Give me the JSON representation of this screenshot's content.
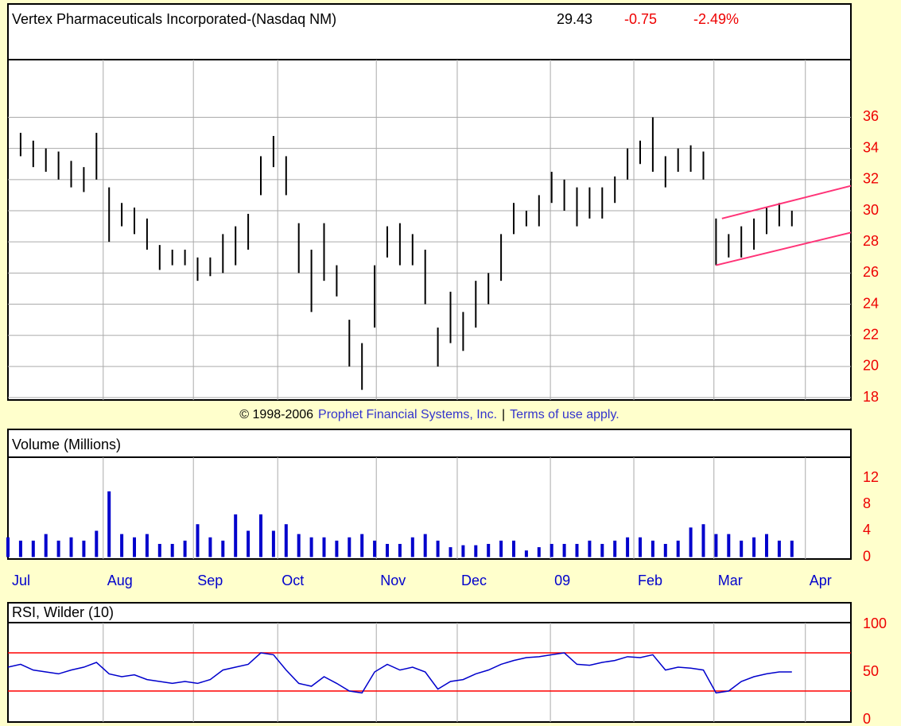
{
  "chart_data": [
    {
      "type": "range",
      "title": "Vertex Pharmaceuticals Incorporated-(Nasdaq NM)",
      "last": "29.43",
      "change": "-0.75",
      "change_pct": "-2.49%",
      "color": "#000000",
      "grid": true,
      "x": [
        0,
        3,
        6,
        9,
        12,
        15,
        18,
        21,
        24,
        27,
        30,
        33,
        36,
        39,
        42,
        45,
        48,
        51,
        54,
        57,
        60,
        63,
        66,
        69,
        72,
        75,
        78,
        81,
        84,
        87,
        90,
        93,
        96,
        99,
        102,
        105,
        108,
        111,
        114,
        117,
        120,
        123,
        126,
        129,
        132,
        135,
        138,
        141,
        144,
        147,
        150,
        153,
        156,
        159,
        162,
        165,
        168,
        171,
        174,
        177,
        180,
        183,
        186
      ],
      "high": [
        34.8,
        35,
        34.5,
        34,
        33.8,
        33.2,
        32.8,
        35,
        31.5,
        30.5,
        30.2,
        29.5,
        27.8,
        27.5,
        27.5,
        27,
        27,
        28.5,
        29,
        29.8,
        33.5,
        34.8,
        33.5,
        29.2,
        27.5,
        29.2,
        26.5,
        23,
        21.5,
        26.5,
        29,
        29.2,
        28.5,
        27.5,
        22.5,
        24.8,
        23.5,
        25.5,
        26,
        28.5,
        30.5,
        30,
        31,
        32.5,
        32,
        31.5,
        31.5,
        31.5,
        32.2,
        34,
        34.5,
        36,
        33.5,
        34,
        34.2,
        33.8,
        29.5,
        28.5,
        29,
        29.5,
        30.2,
        30.5,
        30
      ],
      "low": [
        33.2,
        33.5,
        32.8,
        32.5,
        32,
        31.5,
        31.2,
        32,
        28,
        29,
        28.5,
        27.5,
        26.2,
        26.5,
        26.5,
        25.5,
        25.8,
        26,
        26.5,
        27.5,
        31,
        32.8,
        31,
        26,
        23.5,
        25.5,
        24.5,
        20,
        18.5,
        22.5,
        27,
        26.5,
        26.5,
        24,
        20,
        21.5,
        21,
        22.5,
        24,
        25.5,
        28.5,
        29,
        29,
        30.5,
        30,
        29,
        29.5,
        29.5,
        30.5,
        32,
        33,
        32.5,
        31.5,
        32.5,
        32.5,
        32,
        26.5,
        27,
        27,
        27.5,
        28.5,
        29,
        29
      ],
      "channels": [
        {
          "color": "#ff3377",
          "x": [
            168,
            200
          ],
          "values": [
            26.5,
            28.6
          ]
        },
        {
          "color": "#ff3377",
          "x": [
            169.4,
            200
          ],
          "values": [
            29.5,
            31.6
          ]
        }
      ],
      "xlim": [
        0,
        200
      ],
      "ylim": [
        17.85,
        39.7
      ],
      "yticks": [
        18,
        20,
        22,
        24,
        26,
        28,
        30,
        32,
        34,
        36
      ],
      "copyright": {
        "years": "© 1998-2006",
        "company": "Prophet Financial Systems, Inc.",
        "sep": "|",
        "terms": "Terms of use apply."
      }
    },
    {
      "type": "bar",
      "title": "Volume (Millions)",
      "color": "#0000cc",
      "x": [
        0,
        3,
        6,
        9,
        12,
        15,
        18,
        21,
        24,
        27,
        30,
        33,
        36,
        39,
        42,
        45,
        48,
        51,
        54,
        57,
        60,
        63,
        66,
        69,
        72,
        75,
        78,
        81,
        84,
        87,
        90,
        93,
        96,
        99,
        102,
        105,
        108,
        111,
        114,
        117,
        120,
        123,
        126,
        129,
        132,
        135,
        138,
        141,
        144,
        147,
        150,
        153,
        156,
        159,
        162,
        165,
        168,
        171,
        174,
        177,
        180,
        183,
        186
      ],
      "values": [
        3,
        2.5,
        2.5,
        3.5,
        2.5,
        3,
        2.5,
        4,
        10,
        3.5,
        3,
        3.5,
        2,
        2,
        2.5,
        5,
        3,
        2.5,
        6.5,
        4,
        6.5,
        4,
        5,
        3.5,
        3,
        3,
        2.5,
        3,
        3.5,
        2.5,
        2,
        2,
        3,
        3.5,
        2.5,
        1.5,
        1.8,
        1.8,
        2,
        2.5,
        2.5,
        1,
        1.5,
        2,
        2,
        2,
        2.5,
        2,
        2.5,
        3,
        3,
        2.5,
        2,
        2.5,
        4.5,
        5,
        3.5,
        3.5,
        2.5,
        3,
        3.5,
        2.5,
        2.5
      ],
      "xlim": [
        0,
        200
      ],
      "ylim": [
        -0.3,
        15.2
      ],
      "yticks": [
        0,
        4,
        8,
        12
      ],
      "xticks": [
        {
          "value": 0,
          "label": "Jul"
        },
        {
          "value": 22.6,
          "label": "Aug"
        },
        {
          "value": 44,
          "label": "Sep"
        },
        {
          "value": 64,
          "label": "Oct"
        },
        {
          "value": 87.4,
          "label": "Nov"
        },
        {
          "value": 106.6,
          "label": "Dec"
        },
        {
          "value": 128.7,
          "label": "09"
        },
        {
          "value": 148.5,
          "label": "Feb"
        },
        {
          "value": 167.5,
          "label": "Mar"
        },
        {
          "value": 189.2,
          "label": "Apr"
        }
      ]
    },
    {
      "type": "line",
      "title": "RSI, Wilder (10)",
      "color": "#0000cc",
      "x": [
        0,
        3,
        6,
        9,
        12,
        15,
        18,
        21,
        24,
        27,
        30,
        33,
        36,
        39,
        42,
        45,
        48,
        51,
        54,
        57,
        60,
        63,
        66,
        69,
        72,
        75,
        78,
        81,
        84,
        87,
        90,
        93,
        96,
        99,
        102,
        105,
        108,
        111,
        114,
        117,
        120,
        123,
        126,
        129,
        132,
        135,
        138,
        141,
        144,
        147,
        150,
        153,
        156,
        159,
        162,
        165,
        168,
        171,
        174,
        177,
        180,
        183,
        186
      ],
      "values": [
        55,
        58,
        52,
        50,
        48,
        52,
        55,
        60,
        48,
        45,
        47,
        42,
        40,
        38,
        40,
        38,
        42,
        52,
        55,
        58,
        70,
        68,
        52,
        38,
        35,
        45,
        38,
        30,
        28,
        50,
        58,
        52,
        55,
        50,
        32,
        40,
        42,
        48,
        52,
        58,
        62,
        65,
        66,
        68,
        70,
        58,
        57,
        60,
        62,
        66,
        65,
        68,
        52,
        55,
        54,
        52,
        28,
        30,
        40,
        45,
        48,
        50,
        50
      ],
      "reference_lines": [
        70,
        30
      ],
      "reference_color": "#ff0000",
      "xlim": [
        0,
        200
      ],
      "ylim": [
        -2.5,
        101.7
      ],
      "yticks": [
        0,
        50,
        100
      ]
    }
  ]
}
